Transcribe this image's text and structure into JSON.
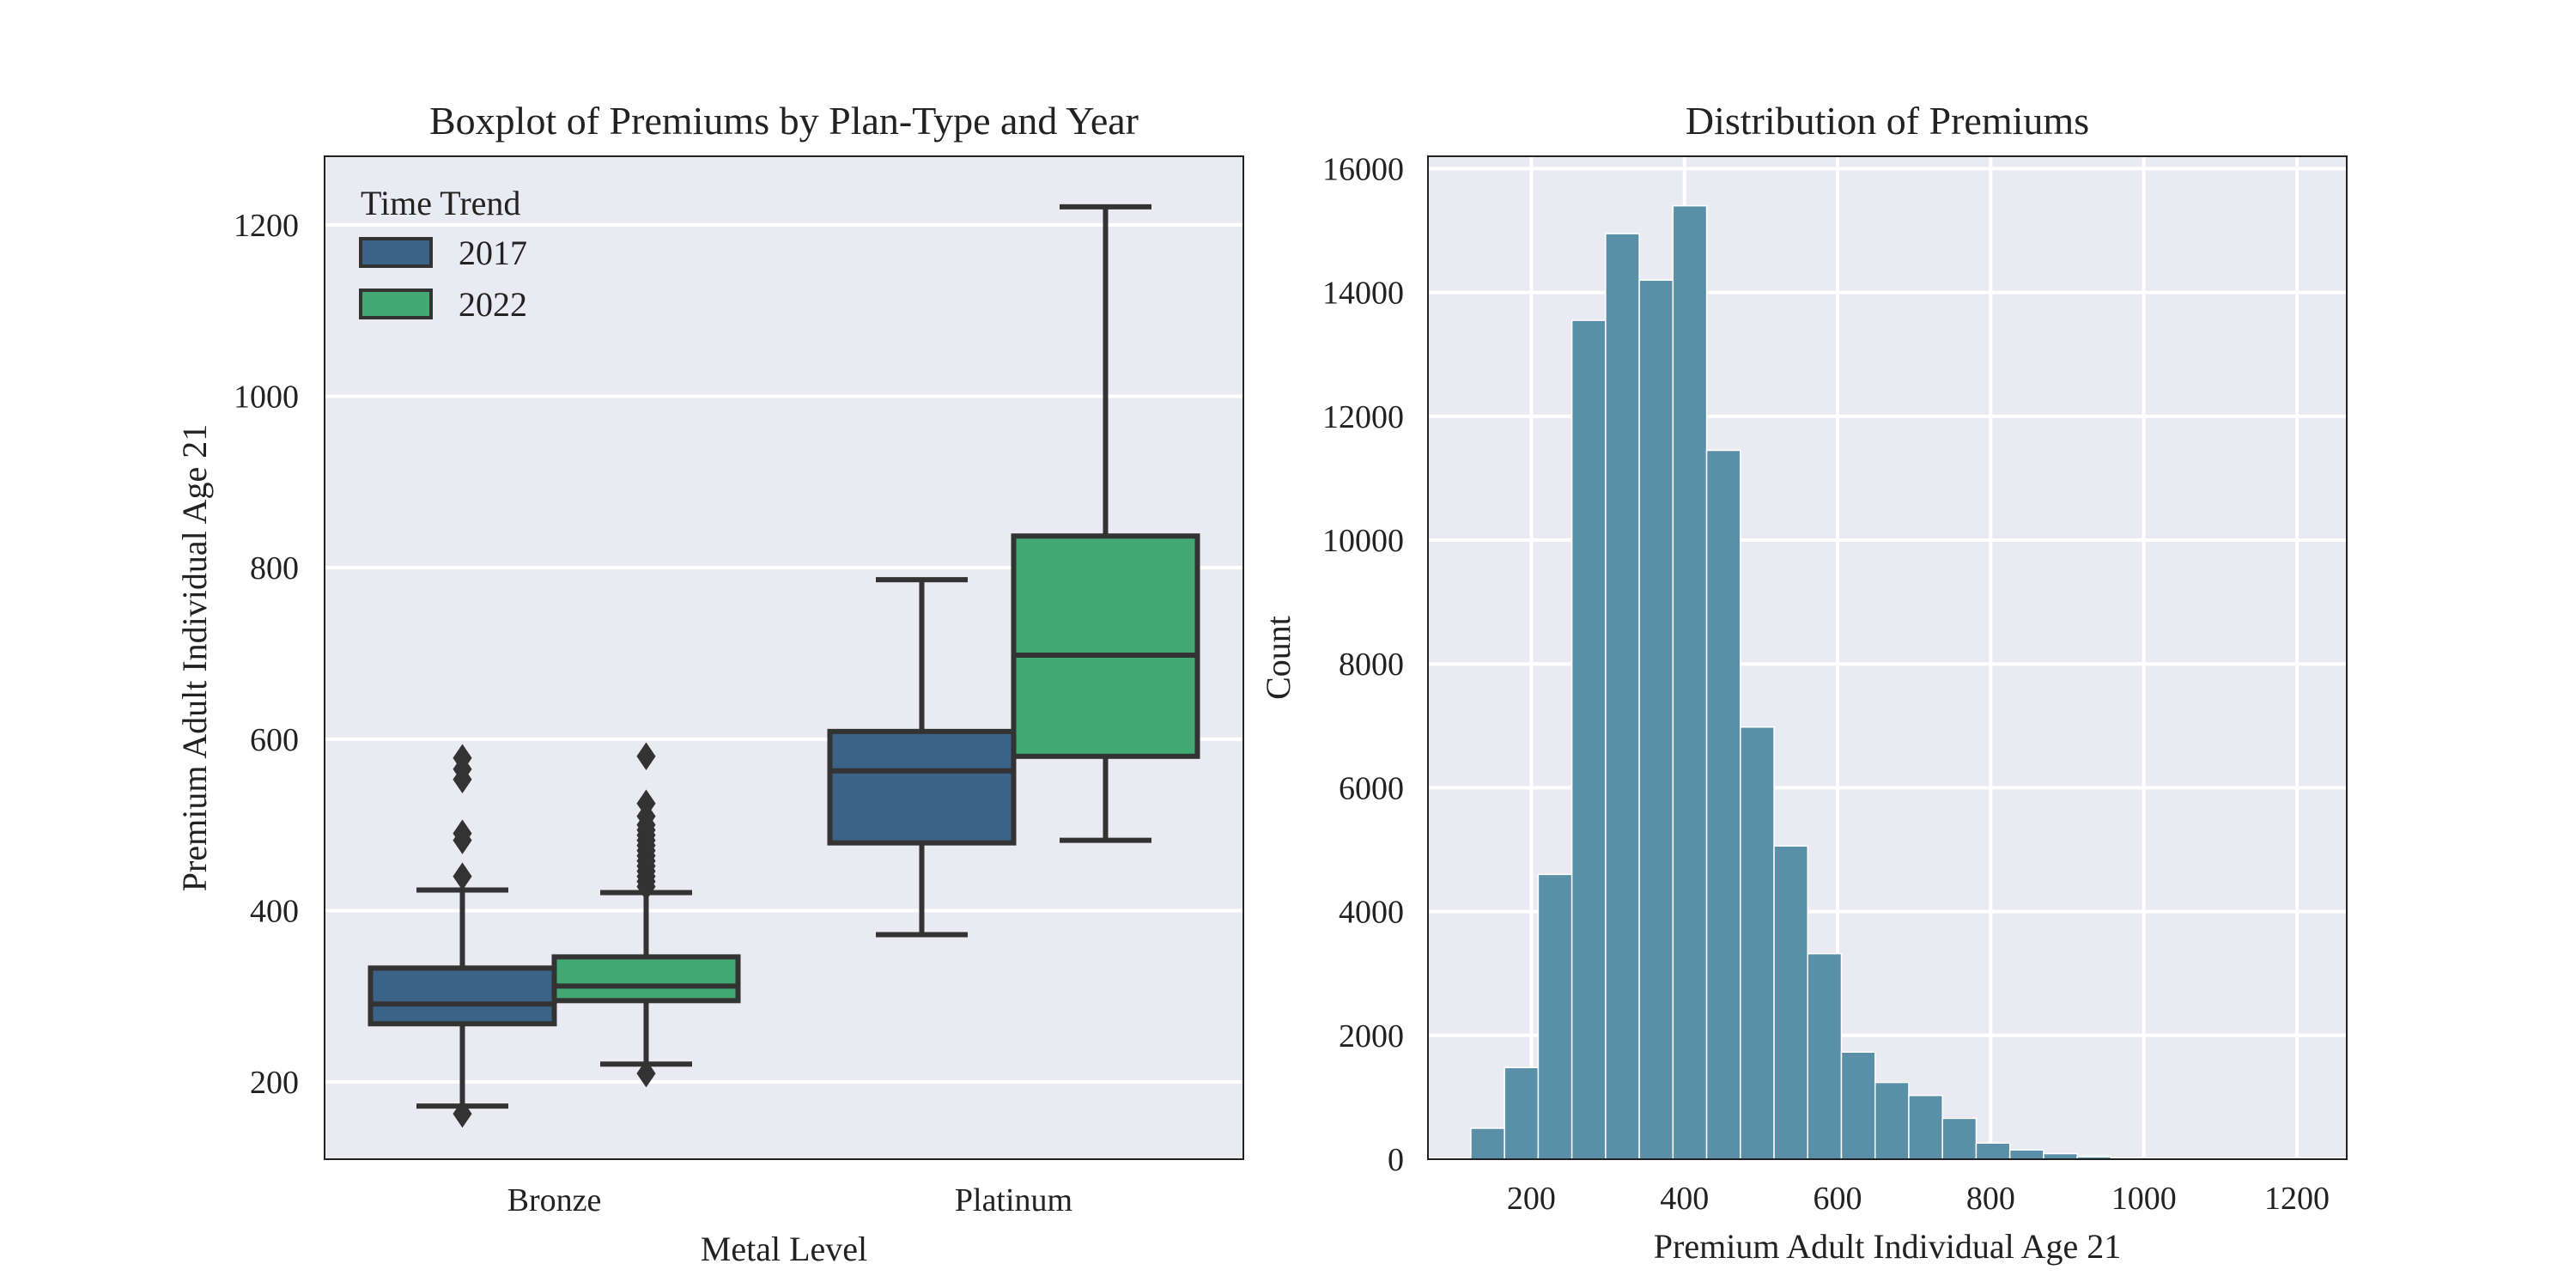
{
  "colors": {
    "panel_bg": "#eaeaf2",
    "grid": "#ffffff",
    "axis_frame": "#222222",
    "box_edge": "#333333",
    "color_2017": "#3b6387",
    "color_2022": "#42a974",
    "hist_bar": "#5a8fa8"
  },
  "chart_data": [
    {
      "type": "boxplot",
      "title": "Boxplot of Premiums by Plan-Type and Year",
      "xlabel": "Metal Level",
      "ylabel": "Premium Adult Individual Age 21",
      "ylim": [
        110,
        1280
      ],
      "yticks": [
        200,
        400,
        600,
        800,
        1000,
        1200
      ],
      "grid": true,
      "categories": [
        "Bronze",
        "Platinum"
      ],
      "legend": {
        "title": "Time Trend",
        "placement": "top-left"
      },
      "series": [
        {
          "name": "2017",
          "color": "#3b6387",
          "boxes": [
            {
              "category": "Bronze",
              "whisker_low": 172,
              "q1": 268,
              "median": 291,
              "q3": 333,
              "whisker_high": 424,
              "outliers": [
                163,
                440,
                482,
                490,
                553,
                565,
                578
              ]
            },
            {
              "category": "Platinum",
              "whisker_low": 372,
              "q1": 479,
              "median": 563,
              "q3": 609,
              "whisker_high": 786,
              "outliers": []
            }
          ]
        },
        {
          "name": "2022",
          "color": "#42a974",
          "boxes": [
            {
              "category": "Bronze",
              "whisker_low": 221,
              "q1": 295,
              "median": 312,
              "q3": 346,
              "whisker_high": 421,
              "outliers": [
                210,
                428,
                434,
                440,
                446,
                452,
                458,
                464,
                470,
                476,
                482,
                488,
                494,
                500,
                510,
                525,
                580
              ]
            },
            {
              "category": "Platinum",
              "whisker_low": 482,
              "q1": 580,
              "median": 698,
              "q3": 837,
              "whisker_high": 1221,
              "outliers": []
            }
          ]
        }
      ]
    },
    {
      "type": "bar",
      "subtype": "histogram",
      "title": "Distribution of Premiums",
      "xlabel": "Premium Adult Individual Age 21",
      "ylabel": "Count",
      "xlim": [
        65,
        1265
      ],
      "ylim": [
        0,
        16200
      ],
      "xticks": [
        200,
        400,
        600,
        800,
        1000,
        1200
      ],
      "yticks": [
        0,
        2000,
        4000,
        6000,
        8000,
        10000,
        12000,
        14000,
        16000
      ],
      "grid": true,
      "bin_edges": [
        121,
        165,
        209,
        253,
        297,
        341,
        385,
        429,
        473,
        517,
        561,
        605,
        649,
        693,
        737,
        781,
        825,
        869,
        913,
        957,
        1001,
        1045,
        1089,
        1133,
        1177,
        1221
      ],
      "values": [
        500,
        1480,
        4600,
        13550,
        14950,
        14200,
        15400,
        11450,
        6980,
        5060,
        3320,
        1730,
        1240,
        1030,
        660,
        260,
        150,
        90,
        40,
        20,
        10,
        5,
        3,
        2,
        1
      ]
    }
  ]
}
